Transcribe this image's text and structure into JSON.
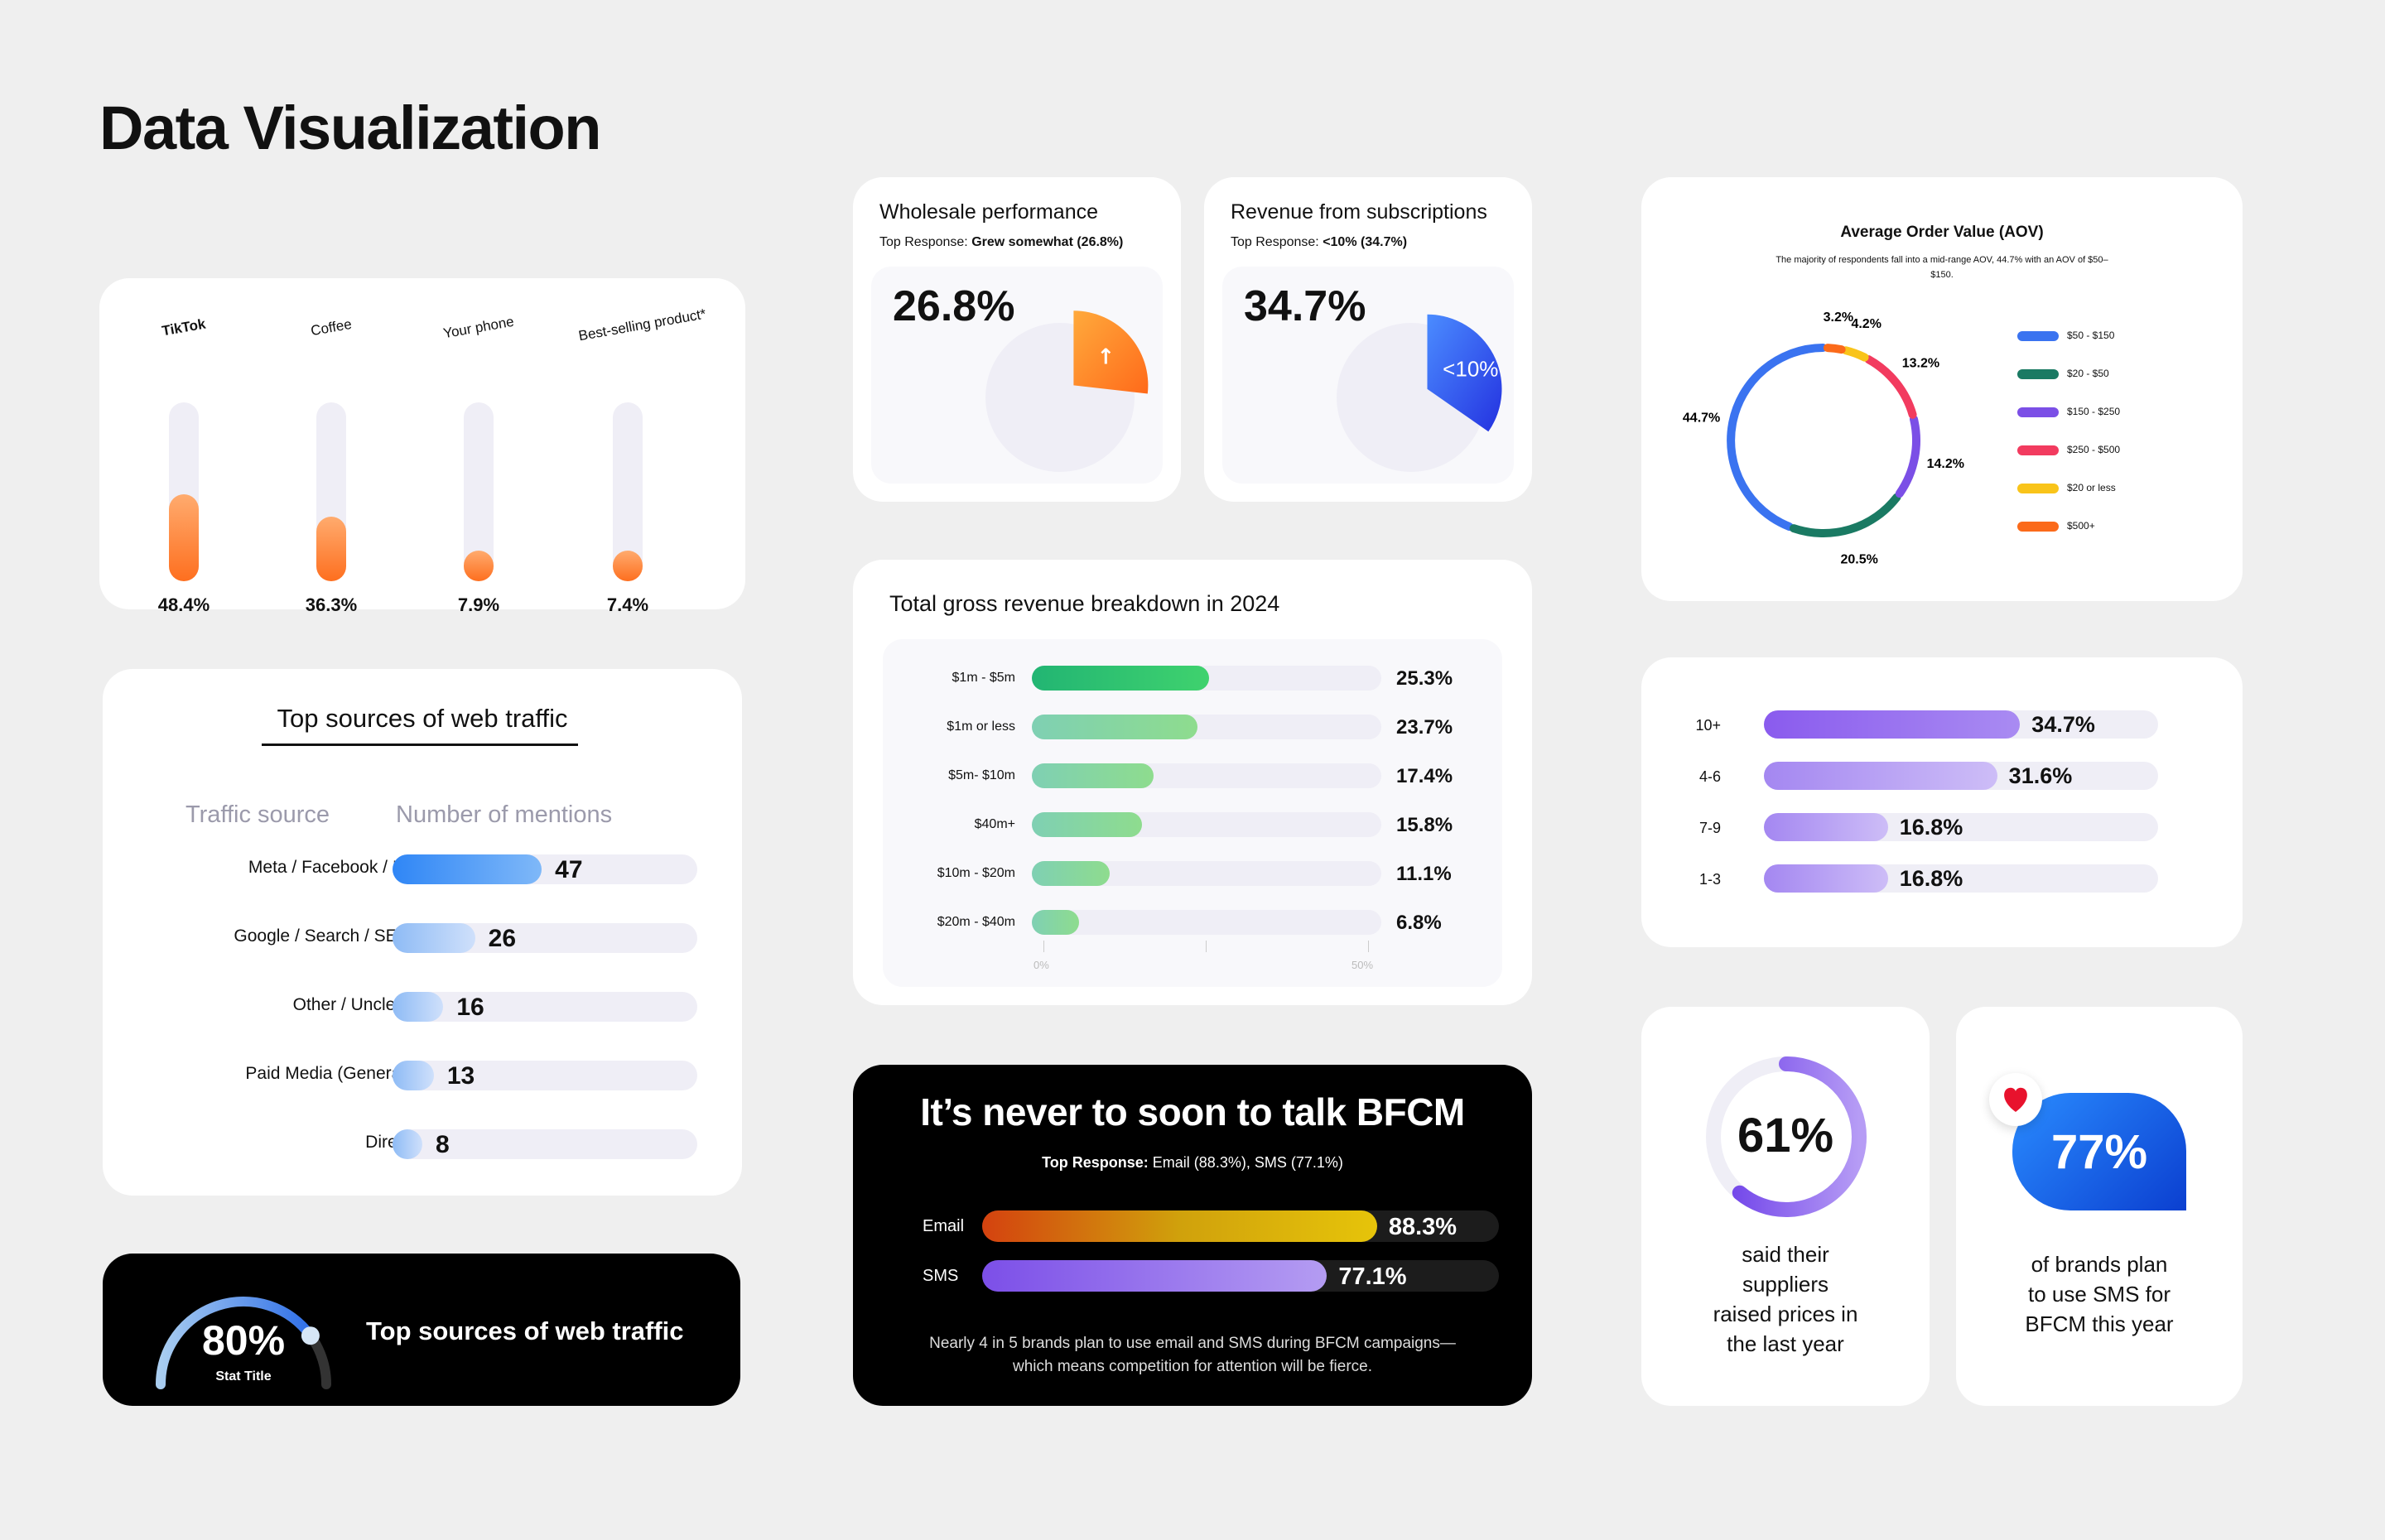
{
  "page": {
    "title": "Data Visualization"
  },
  "card_products": {
    "logo_text": "TikTok",
    "items": [
      {
        "label": "TikTok",
        "value": "48.4%"
      },
      {
        "label": "Coffee",
        "value": "36.3%"
      },
      {
        "label": "Your phone",
        "value": "7.9%"
      },
      {
        "label": "Best-selling product*",
        "value": "7.4%"
      }
    ]
  },
  "card_traffic": {
    "title": "Top sources of web traffic",
    "col_source": "Traffic source",
    "col_mentions": "Number of mentions"
  },
  "card_gauge": {
    "value": "80%",
    "subtitle": "Stat Title",
    "title": "Top sources of web traffic"
  },
  "card_wholesale": {
    "title": "Wholesale performance",
    "response_label": "Top Response:",
    "response_value": "Grew somewhat (26.8%)",
    "big_value": "26.8%",
    "arrow": "↑"
  },
  "card_subs": {
    "title": "Revenue from subscriptions",
    "response_label": "Top Response:",
    "response_value": "<10% (34.7%)",
    "big_value": "34.7%",
    "slice_label": "<10%"
  },
  "card_revenue": {
    "title": "Total gross revenue breakdown in 2024",
    "axis_start": "0%",
    "axis_end": "50%"
  },
  "card_bfcm": {
    "title": "It’s never to soon to talk BFCM",
    "response_label": "Top Response:",
    "response_value": "Email (88.3%), SMS (77.1%)",
    "footnote_1": "Nearly 4 in 5 brands plan to use email and SMS during BFCM campaigns—",
    "footnote_2": "which means competition for attention will be fierce."
  },
  "card_aov": {
    "title": "Average Order Value (AOV)",
    "subtitle_1": "The majority of respondents fall into a mid-range AOV, 44.7% with an AOV of $50–",
    "subtitle_2": "$150."
  },
  "card_suppliers": {
    "value": "61%",
    "line1": "said their",
    "line2": "suppliers",
    "line3": "raised prices in",
    "line4": "the last year"
  },
  "card_sms": {
    "value": "77%",
    "line1": "of brands plan",
    "line2": "to use SMS for",
    "line3": "BFCM this year",
    "icon": "heart-icon"
  },
  "chart_data": [
    {
      "type": "bar",
      "orientation": "vertical",
      "categories": [
        "TikTok",
        "Coffee",
        "Your phone",
        "Best-selling product*"
      ],
      "values": [
        48.4,
        36.3,
        7.9,
        7.4
      ],
      "ylim": [
        0,
        100
      ],
      "colors": [
        "#ffab6e",
        "#fe6f1f"
      ]
    },
    {
      "type": "bar",
      "orientation": "horizontal",
      "title": "Top sources of web traffic",
      "xlabel": "Number of mentions",
      "ylabel": "Traffic source",
      "categories": [
        "Meta / Facebook / IG",
        "Google / Search / SEO",
        "Other / Unclear",
        "Paid Media (General)",
        "Direct"
      ],
      "values": [
        47,
        26,
        16,
        13,
        8
      ],
      "xlim": [
        0,
        96
      ]
    },
    {
      "type": "pie",
      "title": "Wholesale performance",
      "slices": [
        {
          "label": "Grew somewhat",
          "value": 26.8
        }
      ],
      "accent": "#ff8a1f"
    },
    {
      "type": "pie",
      "title": "Revenue from subscriptions",
      "slices": [
        {
          "label": "<10%",
          "value": 34.7
        }
      ],
      "accent": "#3254f0"
    },
    {
      "type": "bar",
      "orientation": "horizontal",
      "title": "Total gross revenue breakdown in 2024",
      "categories": [
        "$1m - $5m",
        "$1m or less",
        "$5m- $10m",
        "$40m+",
        "$10m - $20m",
        "$20m - $40m"
      ],
      "values": [
        25.3,
        23.7,
        17.4,
        15.8,
        11.1,
        6.8
      ],
      "xlim": [
        0,
        50
      ]
    },
    {
      "type": "bar",
      "orientation": "horizontal",
      "title": "It’s never to soon to talk BFCM",
      "categories": [
        "Email",
        "SMS"
      ],
      "values": [
        88.3,
        77.1
      ],
      "xlim": [
        0,
        100
      ]
    },
    {
      "type": "pie",
      "title": "Average Order Value (AOV)",
      "donut": true,
      "slices": [
        {
          "label": "$50 - $150",
          "value": 44.7,
          "color": "#3a73f0"
        },
        {
          "label": "$20 - $50",
          "value": 20.5,
          "color": "#1a7a63"
        },
        {
          "label": "$150 - $250",
          "value": 14.2,
          "color": "#7b4fe6"
        },
        {
          "label": "$250 - $500",
          "value": 13.2,
          "color": "#f23b5f"
        },
        {
          "label": "$20 or less",
          "value": 4.2,
          "color": "#f9c41a"
        },
        {
          "label": "$500+",
          "value": 3.2,
          "color": "#fb6a1a"
        }
      ],
      "legend": "right"
    },
    {
      "type": "bar",
      "orientation": "horizontal",
      "categories": [
        "10+",
        "4-6",
        "7-9",
        "1-3"
      ],
      "values": [
        34.7,
        31.6,
        16.8,
        16.8
      ],
      "xlim": [
        0,
        53.4
      ]
    },
    {
      "type": "pie",
      "donut": true,
      "slices": [
        {
          "label": "said their suppliers raised prices in the last year",
          "value": 61
        }
      ],
      "accent": "#7b4fe6"
    }
  ]
}
